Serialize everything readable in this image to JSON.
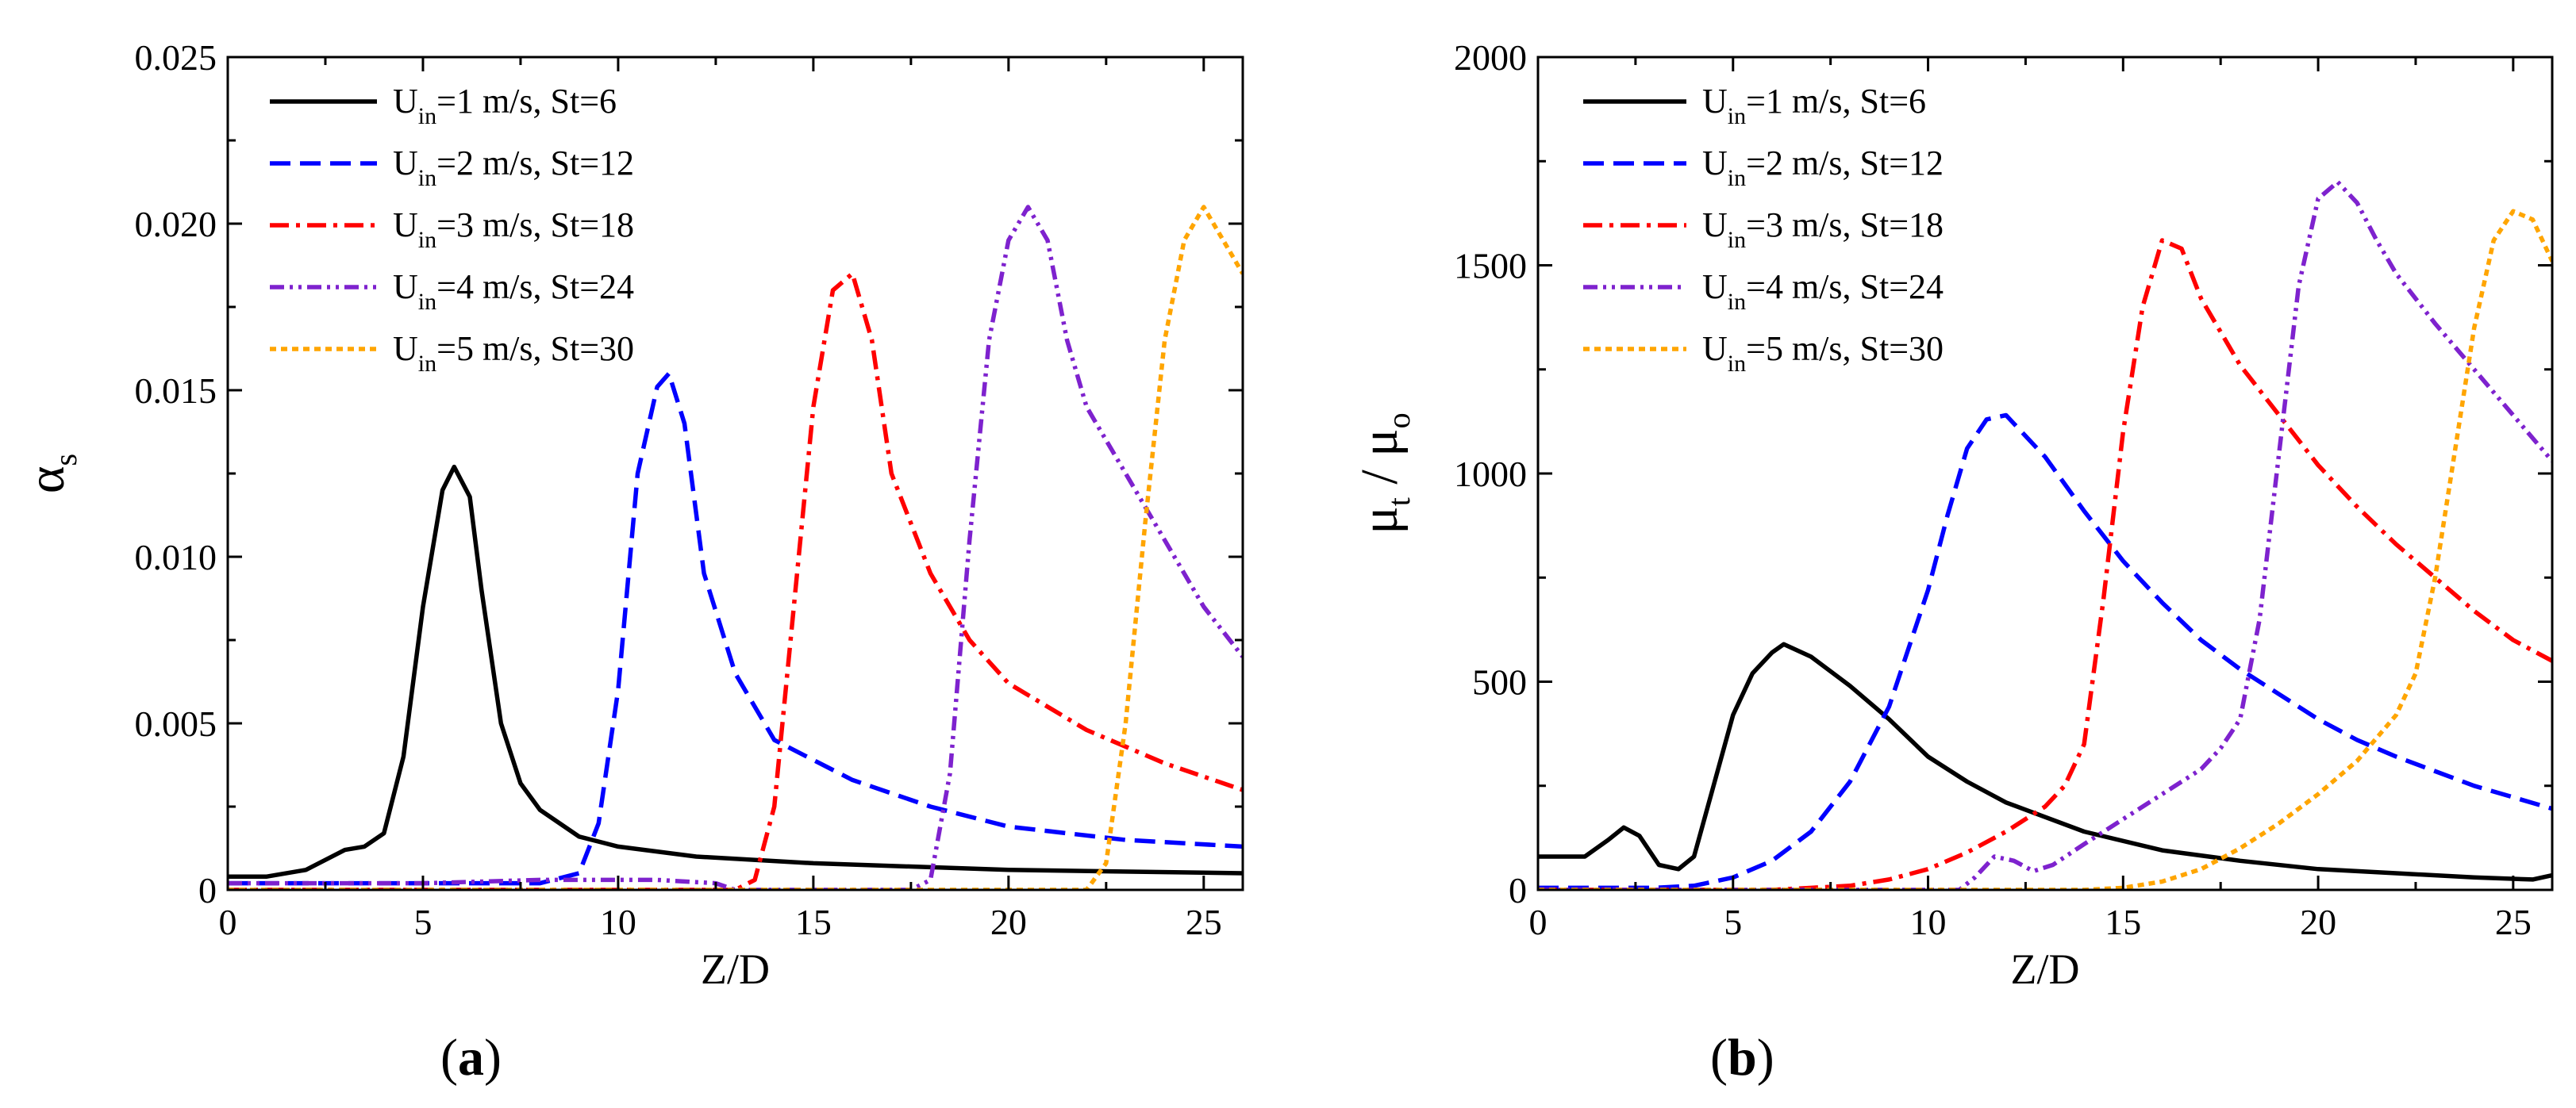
{
  "figure": {
    "panel_labels": [
      "a",
      "b"
    ],
    "legend_units": "m/s",
    "series_style": {
      "colors": [
        "#000000",
        "#0000ff",
        "#ff0000",
        "#7e22ce",
        "#ffa500"
      ],
      "dash": [
        "solid",
        "long-dash",
        "dash-dot",
        "dash-dot-dot",
        "dotted"
      ]
    }
  },
  "chart_data": [
    {
      "type": "line",
      "panel": "a",
      "title": "",
      "xlabel": "Z/D",
      "ylabel_main": "α",
      "ylabel_sub": "s",
      "xlim": [
        0,
        26
      ],
      "ylim": [
        0,
        0.025
      ],
      "xticks": [
        0,
        5,
        10,
        15,
        20,
        25
      ],
      "xtick_labels": [
        "0",
        "5",
        "10",
        "15",
        "20",
        "25"
      ],
      "yticks": [
        0,
        0.005,
        0.01,
        0.015,
        0.02,
        0.025
      ],
      "ytick_labels": [
        "0",
        "0.005",
        "0.010",
        "0.015",
        "0.020",
        "0.025"
      ],
      "grid": false,
      "legend_position": "top-left",
      "series": [
        {
          "name": "U_in=1 m/s, St=6",
          "legend_pre": "U",
          "legend_sub": "in",
          "legend_post": "=1 m/s, St=6",
          "points": [
            [
              0,
              0.0004
            ],
            [
              1,
              0.0004
            ],
            [
              2,
              0.0006
            ],
            [
              3,
              0.0012
            ],
            [
              3.5,
              0.0013
            ],
            [
              4,
              0.0017
            ],
            [
              4.5,
              0.004
            ],
            [
              5,
              0.0085
            ],
            [
              5.5,
              0.012
            ],
            [
              5.8,
              0.0127
            ],
            [
              6.2,
              0.0118
            ],
            [
              6.5,
              0.009
            ],
            [
              7,
              0.005
            ],
            [
              7.5,
              0.0032
            ],
            [
              8,
              0.0024
            ],
            [
              9,
              0.0016
            ],
            [
              10,
              0.0013
            ],
            [
              12,
              0.001
            ],
            [
              15,
              0.0008
            ],
            [
              20,
              0.0006
            ],
            [
              26,
              0.0005
            ]
          ]
        },
        {
          "name": "U_in=2 m/s, St=12",
          "legend_pre": "U",
          "legend_sub": "in",
          "legend_post": "=2 m/s, St=12",
          "points": [
            [
              0,
              0.0002
            ],
            [
              5,
              0.0002
            ],
            [
              8,
              0.0002
            ],
            [
              9,
              0.0005
            ],
            [
              9.5,
              0.002
            ],
            [
              10,
              0.006
            ],
            [
              10.5,
              0.0125
            ],
            [
              11,
              0.0151
            ],
            [
              11.3,
              0.0155
            ],
            [
              11.7,
              0.014
            ],
            [
              12.2,
              0.0095
            ],
            [
              13,
              0.0065
            ],
            [
              14,
              0.0045
            ],
            [
              16,
              0.0033
            ],
            [
              18,
              0.0025
            ],
            [
              20,
              0.0019
            ],
            [
              23,
              0.0015
            ],
            [
              26,
              0.0013
            ]
          ]
        },
        {
          "name": "U_in=3 m/s, St=18",
          "legend_pre": "U",
          "legend_sub": "in",
          "legend_post": "=3 m/s, St=18",
          "points": [
            [
              0,
              0
            ],
            [
              13,
              0
            ],
            [
              13.5,
              0.0003
            ],
            [
              14,
              0.0025
            ],
            [
              14.5,
              0.0085
            ],
            [
              15,
              0.0145
            ],
            [
              15.5,
              0.018
            ],
            [
              16,
              0.0185
            ],
            [
              16.5,
              0.0165
            ],
            [
              17,
              0.0125
            ],
            [
              18,
              0.0095
            ],
            [
              19,
              0.0075
            ],
            [
              20,
              0.0062
            ],
            [
              22,
              0.0048
            ],
            [
              24,
              0.0038
            ],
            [
              26,
              0.003
            ]
          ]
        },
        {
          "name": "U_in=4 m/s, St=24",
          "legend_pre": "U",
          "legend_sub": "in",
          "legend_post": "=4 m/s, St=24",
          "points": [
            [
              0,
              0.0002
            ],
            [
              5,
              0.0002
            ],
            [
              8,
              0.0003
            ],
            [
              11,
              0.0003
            ],
            [
              12.5,
              0.0002
            ],
            [
              13,
              0
            ],
            [
              17.5,
              0
            ],
            [
              18,
              0.0003
            ],
            [
              18.5,
              0.0035
            ],
            [
              19,
              0.0105
            ],
            [
              19.5,
              0.0165
            ],
            [
              20,
              0.0195
            ],
            [
              20.5,
              0.0205
            ],
            [
              21,
              0.0195
            ],
            [
              21.5,
              0.0165
            ],
            [
              22,
              0.0145
            ],
            [
              23,
              0.0125
            ],
            [
              24,
              0.0105
            ],
            [
              25,
              0.0085
            ],
            [
              26,
              0.007
            ]
          ]
        },
        {
          "name": "U_in=5 m/s, St=30",
          "legend_pre": "U",
          "legend_sub": "in",
          "legend_post": "=5 m/s, St=30",
          "points": [
            [
              0,
              0
            ],
            [
              22,
              0
            ],
            [
              22.5,
              0.0008
            ],
            [
              23,
              0.005
            ],
            [
              23.5,
              0.011
            ],
            [
              24,
              0.0165
            ],
            [
              24.5,
              0.0195
            ],
            [
              25,
              0.0205
            ],
            [
              25.5,
              0.0195
            ],
            [
              26,
              0.0185
            ]
          ]
        }
      ]
    },
    {
      "type": "line",
      "panel": "b",
      "title": "",
      "xlabel": "Z/D",
      "ylabel_main": "μ",
      "ylabel_sub": "t",
      "ylabel_mid": " / ",
      "ylabel_main2": "μ",
      "ylabel_sub2": "o",
      "xlim": [
        0,
        26
      ],
      "ylim": [
        0,
        2000
      ],
      "xticks": [
        0,
        5,
        10,
        15,
        20,
        25
      ],
      "xtick_labels": [
        "0",
        "5",
        "10",
        "15",
        "20",
        "25"
      ],
      "yticks": [
        0,
        500,
        1000,
        1500,
        2000
      ],
      "ytick_labels": [
        "0",
        "500",
        "1000",
        "1500",
        "2000"
      ],
      "grid": false,
      "legend_position": "top-left",
      "series": [
        {
          "name": "U_in=1 m/s, St=6",
          "legend_pre": "U",
          "legend_sub": "in",
          "legend_post": "=1 m/s, St=6",
          "points": [
            [
              0,
              80
            ],
            [
              1.2,
              80
            ],
            [
              1.8,
              120
            ],
            [
              2.2,
              150
            ],
            [
              2.6,
              130
            ],
            [
              3.1,
              60
            ],
            [
              3.6,
              50
            ],
            [
              4,
              80
            ],
            [
              4.5,
              250
            ],
            [
              5,
              420
            ],
            [
              5.5,
              520
            ],
            [
              6,
              570
            ],
            [
              6.3,
              590
            ],
            [
              7,
              560
            ],
            [
              8,
              490
            ],
            [
              9,
              410
            ],
            [
              10,
              320
            ],
            [
              11,
              260
            ],
            [
              12,
              210
            ],
            [
              14,
              140
            ],
            [
              16,
              95
            ],
            [
              18,
              70
            ],
            [
              20,
              50
            ],
            [
              22,
              40
            ],
            [
              24,
              30
            ],
            [
              25.5,
              25
            ],
            [
              26,
              35
            ]
          ]
        },
        {
          "name": "U_in=2 m/s, St=12",
          "legend_pre": "U",
          "legend_sub": "in",
          "legend_post": "=2 m/s, St=12",
          "points": [
            [
              0,
              5
            ],
            [
              3,
              5
            ],
            [
              4,
              10
            ],
            [
              5,
              30
            ],
            [
              6,
              70
            ],
            [
              7,
              140
            ],
            [
              8,
              260
            ],
            [
              9,
              440
            ],
            [
              10,
              720
            ],
            [
              10.5,
              900
            ],
            [
              11,
              1060
            ],
            [
              11.5,
              1130
            ],
            [
              12,
              1140
            ],
            [
              13,
              1040
            ],
            [
              14,
              910
            ],
            [
              15,
              790
            ],
            [
              16,
              690
            ],
            [
              17,
              600
            ],
            [
              18,
              530
            ],
            [
              19,
              470
            ],
            [
              20,
              410
            ],
            [
              21,
              360
            ],
            [
              22,
              320
            ],
            [
              24,
              250
            ],
            [
              26,
              195
            ]
          ]
        },
        {
          "name": "U_in=3 m/s, St=18",
          "legend_pre": "U",
          "legend_sub": "in",
          "legend_post": "=3 m/s, St=18",
          "points": [
            [
              0,
              0
            ],
            [
              6,
              0
            ],
            [
              8,
              10
            ],
            [
              9,
              25
            ],
            [
              10,
              50
            ],
            [
              11,
              90
            ],
            [
              12,
              140
            ],
            [
              13,
              200
            ],
            [
              13.5,
              250
            ],
            [
              14,
              350
            ],
            [
              14.5,
              700
            ],
            [
              15,
              1100
            ],
            [
              15.5,
              1400
            ],
            [
              16,
              1560
            ],
            [
              16.5,
              1540
            ],
            [
              17,
              1420
            ],
            [
              18,
              1260
            ],
            [
              19,
              1140
            ],
            [
              20,
              1020
            ],
            [
              21,
              920
            ],
            [
              22,
              830
            ],
            [
              23,
              750
            ],
            [
              24,
              670
            ],
            [
              25,
              600
            ],
            [
              26,
              550
            ]
          ]
        },
        {
          "name": "U_in=4 m/s, St=24",
          "legend_pre": "U",
          "legend_sub": "in",
          "legend_post": "=4 m/s, St=24",
          "points": [
            [
              0,
              0
            ],
            [
              10,
              0
            ],
            [
              10.8,
              0
            ],
            [
              11.2,
              30
            ],
            [
              11.7,
              80
            ],
            [
              12.2,
              70
            ],
            [
              12.7,
              45
            ],
            [
              13.2,
              60
            ],
            [
              14,
              110
            ],
            [
              15,
              170
            ],
            [
              16,
              230
            ],
            [
              17,
              290
            ],
            [
              17.5,
              340
            ],
            [
              18,
              410
            ],
            [
              18.5,
              650
            ],
            [
              19,
              1050
            ],
            [
              19.5,
              1450
            ],
            [
              20,
              1660
            ],
            [
              20.5,
              1700
            ],
            [
              21,
              1650
            ],
            [
              21.5,
              1560
            ],
            [
              22,
              1480
            ],
            [
              23,
              1360
            ],
            [
              24,
              1250
            ],
            [
              25,
              1140
            ],
            [
              26,
              1030
            ]
          ]
        },
        {
          "name": "U_in=5 m/s, St=30",
          "legend_pre": "U",
          "legend_sub": "in",
          "legend_post": "=5 m/s, St=30",
          "points": [
            [
              0,
              0
            ],
            [
              14,
              0
            ],
            [
              15,
              5
            ],
            [
              16,
              20
            ],
            [
              17,
              50
            ],
            [
              18,
              100
            ],
            [
              19,
              160
            ],
            [
              20,
              230
            ],
            [
              21,
              310
            ],
            [
              22,
              420
            ],
            [
              22.5,
              520
            ],
            [
              23,
              750
            ],
            [
              23.5,
              1050
            ],
            [
              24,
              1350
            ],
            [
              24.5,
              1560
            ],
            [
              25,
              1630
            ],
            [
              25.5,
              1610
            ],
            [
              26,
              1510
            ]
          ]
        }
      ]
    }
  ]
}
